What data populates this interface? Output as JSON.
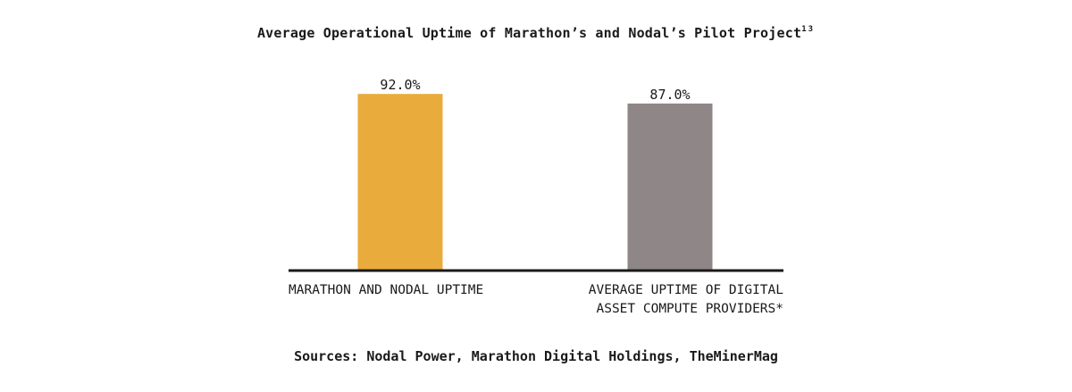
{
  "title": "Average Operational Uptime of Marathon’s and Nodal’s Pilot Project",
  "title_footnote": "13",
  "source": "Sources: Nodal Power, Marathon Digital Holdings, TheMinerMag",
  "colors": {
    "bar_1": "#e8ab3c",
    "bar_2": "#8f8687",
    "baseline": "#1a1a1a",
    "text": "#1a1a1a"
  },
  "chart_data": {
    "type": "bar",
    "categories": [
      [
        "MARATHON AND NODAL UPTIME"
      ],
      [
        "AVERAGE UPTIME OF DIGITAL",
        "ASSET COMPUTE PROVIDERS*"
      ]
    ],
    "values": [
      92.0,
      87.0
    ],
    "data_labels": [
      "92.0%",
      "87.0%"
    ],
    "ylim": [
      0,
      100
    ],
    "grid": false,
    "legend": "none"
  }
}
